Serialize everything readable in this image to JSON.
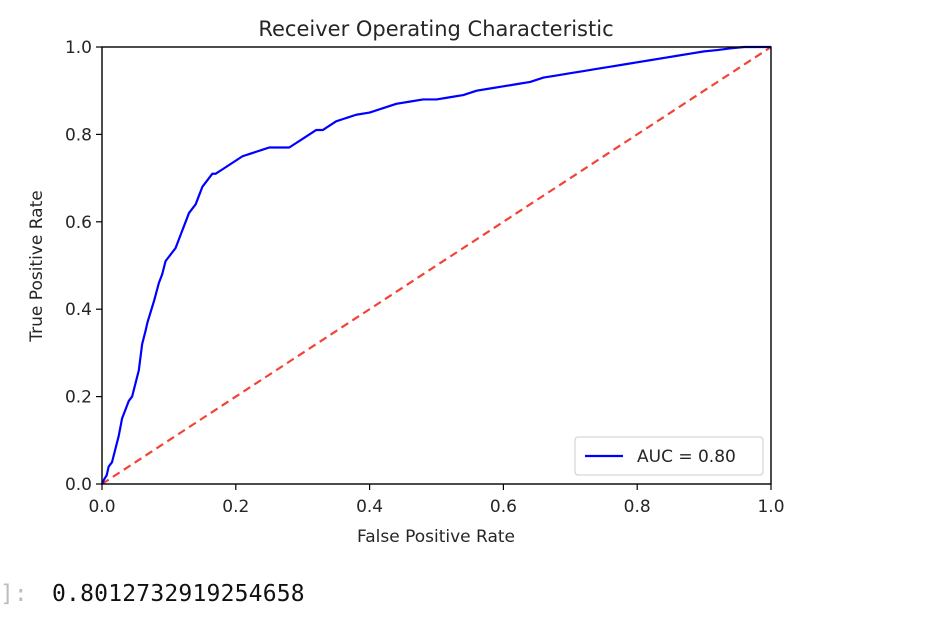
{
  "chart_data": {
    "type": "line",
    "title": "Receiver Operating Characteristic",
    "xlabel": "False Positive Rate",
    "ylabel": "True Positive Rate",
    "xlim": [
      0,
      1
    ],
    "ylim": [
      0,
      1
    ],
    "xticks": [
      "0.0",
      "0.2",
      "0.4",
      "0.6",
      "0.8",
      "1.0"
    ],
    "yticks": [
      "0.0",
      "0.2",
      "0.4",
      "0.6",
      "0.8",
      "1.0"
    ],
    "grid": false,
    "legend_position": "lower right",
    "series": [
      {
        "name": "AUC = 0.80",
        "color": "#0000ff",
        "style": "solid",
        "x": [
          0.0,
          0.003,
          0.007,
          0.01,
          0.015,
          0.02,
          0.025,
          0.03,
          0.035,
          0.04,
          0.045,
          0.05,
          0.055,
          0.06,
          0.065,
          0.068,
          0.072,
          0.078,
          0.085,
          0.09,
          0.095,
          0.1,
          0.105,
          0.11,
          0.115,
          0.12,
          0.125,
          0.13,
          0.135,
          0.14,
          0.145,
          0.15,
          0.155,
          0.16,
          0.165,
          0.17,
          0.18,
          0.19,
          0.2,
          0.21,
          0.22,
          0.23,
          0.24,
          0.25,
          0.26,
          0.27,
          0.28,
          0.29,
          0.3,
          0.31,
          0.32,
          0.33,
          0.34,
          0.35,
          0.36,
          0.37,
          0.38,
          0.4,
          0.42,
          0.44,
          0.46,
          0.48,
          0.5,
          0.52,
          0.54,
          0.56,
          0.58,
          0.6,
          0.62,
          0.64,
          0.66,
          0.68,
          0.7,
          0.72,
          0.74,
          0.76,
          0.78,
          0.8,
          0.82,
          0.84,
          0.86,
          0.88,
          0.9,
          0.92,
          0.94,
          0.96,
          0.98,
          1.0
        ],
        "y": [
          0.0,
          0.01,
          0.02,
          0.04,
          0.05,
          0.08,
          0.11,
          0.15,
          0.17,
          0.19,
          0.2,
          0.23,
          0.26,
          0.32,
          0.35,
          0.37,
          0.39,
          0.42,
          0.46,
          0.48,
          0.51,
          0.52,
          0.53,
          0.54,
          0.56,
          0.58,
          0.6,
          0.62,
          0.63,
          0.64,
          0.66,
          0.68,
          0.69,
          0.7,
          0.71,
          0.71,
          0.72,
          0.73,
          0.74,
          0.75,
          0.755,
          0.76,
          0.765,
          0.77,
          0.77,
          0.77,
          0.77,
          0.78,
          0.79,
          0.8,
          0.81,
          0.81,
          0.82,
          0.83,
          0.835,
          0.84,
          0.845,
          0.85,
          0.86,
          0.87,
          0.875,
          0.88,
          0.88,
          0.885,
          0.89,
          0.9,
          0.905,
          0.91,
          0.915,
          0.92,
          0.93,
          0.935,
          0.94,
          0.945,
          0.95,
          0.955,
          0.96,
          0.965,
          0.97,
          0.975,
          0.98,
          0.985,
          0.99,
          0.993,
          0.997,
          1.0,
          1.0,
          1.0
        ]
      },
      {
        "name": "",
        "color": "#f44336",
        "style": "dashed",
        "x": [
          0,
          1
        ],
        "y": [
          0,
          1
        ]
      }
    ]
  },
  "output": {
    "prompt": "]:",
    "value": "0.8012732919254658"
  }
}
